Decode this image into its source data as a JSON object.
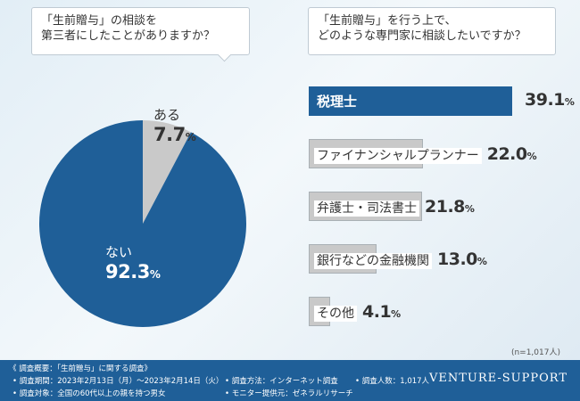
{
  "question_left": {
    "line1": "「生前贈与」の相談を",
    "line2": "第三者にしたことがありますか？"
  },
  "question_right": {
    "line1": "「生前贈与」を行う上で、",
    "line2": "どのような専門家に相談したいですか？"
  },
  "colors": {
    "blue": "#1f5f98",
    "gray": "#c9c9c9"
  },
  "chart_data": [
    {
      "type": "pie",
      "title": "「生前贈与」の相談を第三者にしたことがありますか？",
      "slices": [
        {
          "label": "ある",
          "value": 7.7,
          "pct_main": "7.7",
          "unit": "%"
        },
        {
          "label": "ない",
          "value": 92.3,
          "pct_main": "92.3",
          "unit": "%"
        }
      ]
    },
    {
      "type": "bar",
      "orientation": "horizontal",
      "title": "「生前贈与」を行う上で、どのような専門家に相談したいですか？",
      "categories": [
        "税理士",
        "ファイナンシャルプランナー",
        "弁護士・司法書士",
        "銀行などの金融機関",
        "その他"
      ],
      "values": [
        39.1,
        22.0,
        21.8,
        13.0,
        4.1
      ],
      "value_labels": [
        "39.1",
        "22.0",
        "21.8",
        "13.0",
        "4.1"
      ],
      "unit": "%",
      "xlim": [
        0,
        39.1
      ]
    }
  ],
  "note": "(n=1,017人)",
  "footer": {
    "summary": "《 調査概要：「生前贈与」に関する調査》",
    "period": "• 調査期間：2023年2月13日（月）〜2023年2月14日（火）",
    "target": "• 調査対象：全国の60代以上の親を持つ男女",
    "method": "• 調査方法：インターネット調査",
    "provider": "• モニター提供元：ゼネラルリサーチ",
    "count": "• 調査人数：1,017人",
    "brand": "VENTURE-SUPPORT"
  }
}
